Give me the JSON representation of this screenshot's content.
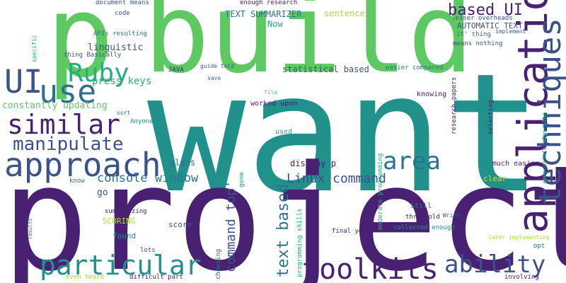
{
  "palette": {
    "dark_purple": "#482173",
    "indigo": "#3b528b",
    "steel_blue": "#2c728e",
    "teal": "#21918c",
    "sea_green": "#27ad81",
    "light_green": "#5ec962",
    "lime": "#addc30",
    "yellow": "#d8e219"
  },
  "words": [
    {
      "text": "want",
      "color": "#21918c"
    },
    {
      "text": "project",
      "color": "#482173"
    },
    {
      "text": "p",
      "color": "#5ec962"
    },
    {
      "text": "build",
      "color": "#5ec962"
    },
    {
      "text": "application",
      "color": "#482173"
    },
    {
      "text": "techniques",
      "color": "#3b528b"
    },
    {
      "text": "UI",
      "color": "#3b528b"
    },
    {
      "text": "use",
      "color": "#2c728e"
    },
    {
      "text": "Ruby",
      "color": "#27ad81"
    },
    {
      "text": "similar",
      "color": "#482173"
    },
    {
      "text": "approach",
      "color": "#3b528b"
    },
    {
      "text": "manipulate",
      "color": "#3b528b"
    },
    {
      "text": "area",
      "color": "#2c728e"
    },
    {
      "text": "particular",
      "color": "#21918c"
    },
    {
      "text": "toolkits",
      "color": "#482173"
    },
    {
      "text": "ability",
      "color": "#3b528b"
    },
    {
      "text": "based UI",
      "color": "#482173"
    },
    {
      "text": "text based",
      "color": "#2c728e"
    },
    {
      "text": "command top'",
      "color": "#3b528b"
    },
    {
      "text": "Linux command",
      "color": "#3b528b"
    },
    {
      "text": "console window",
      "color": "#2c728e"
    },
    {
      "text": "constantly updating",
      "color": "#5ec962"
    },
    {
      "text": "press keys",
      "color": "#27ad81"
    },
    {
      "text": "linguistic",
      "color": "#3b528b"
    },
    {
      "text": "TEXT SUMMARIZER",
      "color": "#2c728e"
    },
    {
      "text": "sentence",
      "color": "#addc30"
    },
    {
      "text": "AUTOMATIC TEXT",
      "color": "#3b528b"
    },
    {
      "text": "statistical based",
      "color": "#3b528b"
    },
    {
      "text": "display p",
      "color": "#482173"
    },
    {
      "text": "algos",
      "color": "#2c728e"
    },
    {
      "text": "document means",
      "color": "#3b528b"
    },
    {
      "text": "enough research",
      "color": "#482173"
    },
    {
      "text": "code",
      "color": "#3b528b"
    },
    {
      "text": "APIs resulting",
      "color": "#2c728e"
    },
    {
      "text": "thing Basically",
      "color": "#3b528b"
    },
    {
      "text": "JAVA",
      "color": "#482173"
    },
    {
      "text": "guide told",
      "color": "#3b528b"
    },
    {
      "text": "save",
      "color": "#2c728e"
    },
    {
      "text": "Now",
      "color": "#27ad81"
    },
    {
      "text": "lesser overheads",
      "color": "#3b528b"
    },
    {
      "text": "it' thing",
      "color": "#2c728e"
    },
    {
      "text": "implement",
      "color": "#3b528b"
    },
    {
      "text": "means nothing",
      "color": "#3b528b"
    },
    {
      "text": "easier compared",
      "color": "#2c728e"
    },
    {
      "text": "worked upon",
      "color": "#482173"
    },
    {
      "text": "file",
      "color": "#5ec962"
    },
    {
      "text": "used",
      "color": "#27ad81"
    },
    {
      "text": "knowing",
      "color": "#482173"
    },
    {
      "text": "research papers",
      "color": "#482173"
    },
    {
      "text": "selecting",
      "color": "#482173"
    },
    {
      "text": "appropriate algorithm",
      "color": "#27ad81"
    },
    {
      "text": "much easier",
      "color": "#482173"
    },
    {
      "text": "clear",
      "color": "#d8e219"
    },
    {
      "text": "go",
      "color": "#3b528b"
    },
    {
      "text": "know",
      "color": "#2c728e"
    },
    {
      "text": "Anyone",
      "color": "#21918c"
    },
    {
      "text": "sort",
      "color": "#2c728e"
    },
    {
      "text": "summarizing",
      "color": "#482173"
    },
    {
      "text": "SCORING",
      "color": "#addc30"
    },
    {
      "text": "score",
      "color": "#3b528b"
    },
    {
      "text": "found",
      "color": "#21918c"
    },
    {
      "text": "lots",
      "color": "#3b528b"
    },
    {
      "text": "choosing",
      "color": "#2c728e"
    },
    {
      "text": "gone",
      "color": "#21918c"
    },
    {
      "text": "programming skills",
      "color": "#27ad81"
    },
    {
      "text": "moderate programming",
      "color": "#27ad81"
    },
    {
      "text": "Still",
      "color": "#2c728e"
    },
    {
      "text": "threshold",
      "color": "#482173"
    },
    {
      "text": "collected enough",
      "color": "#21918c"
    },
    {
      "text": "Write",
      "color": "#3b528b"
    },
    {
      "text": "final year",
      "color": "#482173"
    },
    {
      "text": "later implementing",
      "color": "#addc30"
    },
    {
      "text": "opt",
      "color": "#2c728e"
    },
    {
      "text": "involving",
      "color": "#482173"
    },
    {
      "text": "even heard",
      "color": "#addc30"
    },
    {
      "text": "difficult part",
      "color": "#482173"
    },
    {
      "text": "results",
      "color": "#2c728e"
    },
    {
      "text": "specific",
      "color": "#27ad81"
    }
  ]
}
